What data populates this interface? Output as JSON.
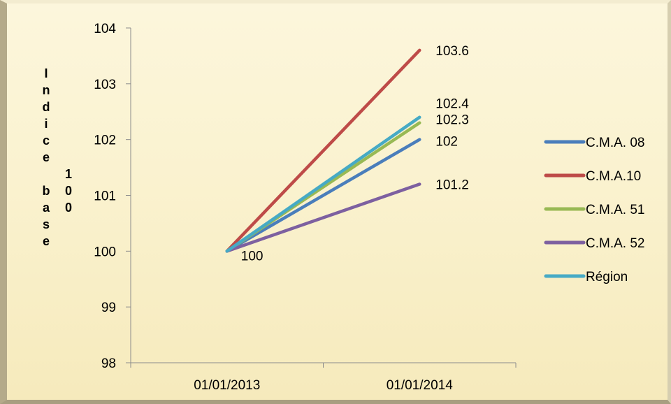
{
  "chart_data": {
    "type": "line",
    "categories": [
      "01/01/2013",
      "01/01/2014"
    ],
    "series": [
      {
        "name": "C.M.A. 08",
        "values": [
          100,
          102
        ],
        "color": "#4a7ebb"
      },
      {
        "name": "C.M.A.10",
        "values": [
          100,
          103.6
        ],
        "color": "#be4b48"
      },
      {
        "name": "C.M.A. 51",
        "values": [
          100,
          102.3
        ],
        "color": "#98b954"
      },
      {
        "name": "C.M.A. 52",
        "values": [
          100,
          101.2
        ],
        "color": "#7d60a0"
      },
      {
        "name": "Région",
        "values": [
          100,
          102.4
        ],
        "color": "#46aac5"
      }
    ],
    "ylabel_part1": "Indice base",
    "ylabel_part2": "100",
    "ylim": [
      98,
      104
    ],
    "yticks": [
      "98",
      "99",
      "100",
      "101",
      "102",
      "103",
      "104"
    ],
    "data_labels": [
      {
        "text": "103.6",
        "value": 103.6,
        "category": 1
      },
      {
        "text": "102.4",
        "value": 102.4,
        "category": 1
      },
      {
        "text": "102.3",
        "value": 102.3,
        "category": 1
      },
      {
        "text": "102",
        "value": 102,
        "category": 1
      },
      {
        "text": "101.2",
        "value": 101.2,
        "category": 1
      },
      {
        "text": "100",
        "value": 100,
        "category": 0
      }
    ],
    "legend_position": "right",
    "grid": false
  }
}
